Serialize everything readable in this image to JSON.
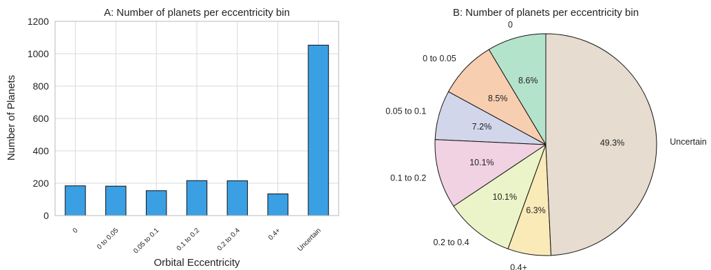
{
  "chart_data": [
    {
      "type": "bar",
      "title": "A: Number of planets per eccentricity bin",
      "xlabel": "Orbital Eccentricity",
      "ylabel": "Number of Planets",
      "categories": [
        "0",
        "0 to 0.05",
        "0.05 to 0.1",
        "0.1 to 0.2",
        "0.2 to 0.4",
        "0.4+",
        "Uncertain"
      ],
      "values": [
        184,
        182,
        154,
        216,
        215,
        134,
        1053
      ],
      "ylim": [
        0,
        1200
      ],
      "yticks": [
        "0",
        "200",
        "400",
        "600",
        "800",
        "1000",
        "1200"
      ],
      "grid": true,
      "color": "#3b9fe3"
    },
    {
      "type": "pie",
      "title": "B: Number of planets per eccentricity bin",
      "categories": [
        "0",
        "0 to 0.05",
        "0.05 to 0.1",
        "0.1 to 0.2",
        "0.2 to 0.4",
        "0.4+",
        "Uncertain"
      ],
      "values": [
        8.6,
        8.5,
        7.2,
        10.1,
        10.1,
        6.3,
        49.3
      ],
      "pct_labels": [
        "8.6%",
        "8.5%",
        "7.2%",
        "10.1%",
        "10.1%",
        "6.3%",
        "49.3%"
      ],
      "colors": [
        "#b4e3cc",
        "#f8ceb0",
        "#d2d6ea",
        "#f0d2e2",
        "#ebf4c8",
        "#f9eab8",
        "#e6dccf"
      ]
    }
  ]
}
